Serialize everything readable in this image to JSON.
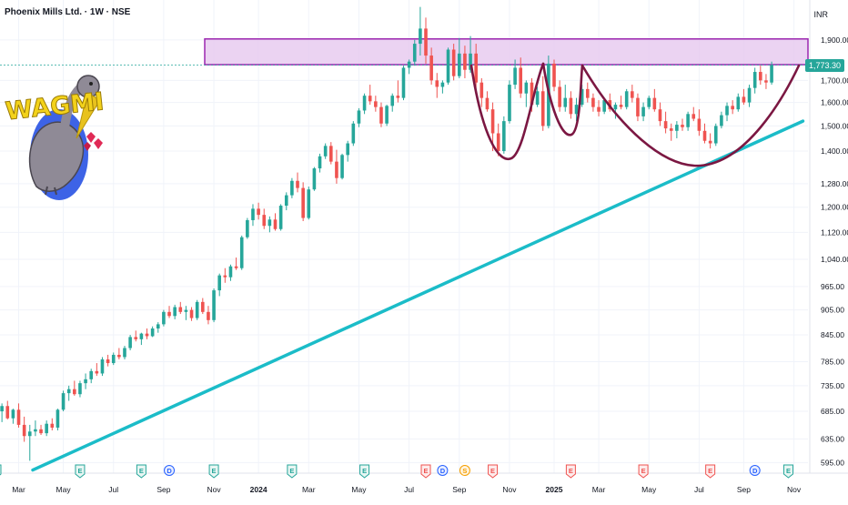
{
  "header": {
    "title": "Phoenix Mills Ltd. · 1W · NSE",
    "currency": "INR"
  },
  "logo": {
    "text": "WAGMI"
  },
  "chart_data": {
    "type": "candlestick",
    "scale": "log",
    "ylim": [
      578,
      2120
    ],
    "y_ticks": [
      "1,900.00",
      "1,700.00",
      "1,600.00",
      "1,500.00",
      "1,400.00",
      "1,280.00",
      "1,200.00",
      "1,120.00",
      "1,040.00",
      "965.00",
      "905.00",
      "845.00",
      "785.00",
      "735.00",
      "685.00",
      "635.00",
      "595.00"
    ],
    "x_ticks": [
      "Mar",
      "May",
      "Jul",
      "Sep",
      "Nov",
      "2024",
      "Mar",
      "May",
      "Jul",
      "Sep",
      "Nov",
      "2025",
      "Mar",
      "May",
      "Jul",
      "Sep",
      "Nov"
    ],
    "last_price": "1,773.30",
    "colors": {
      "up": "#26a69a",
      "down": "#ef5350",
      "trendline": "#1bbcc8",
      "pattern": "#7b1742",
      "zone_fill": "#e6c8ef",
      "zone_stroke": "#9c27b0"
    },
    "resistance_zone": [
      1775,
      1905
    ],
    "trendline": [
      {
        "week": 0,
        "price": 583
      },
      {
        "week": 142,
        "price": 1520
      }
    ],
    "events": [
      {
        "week": 0,
        "label": "E",
        "kind": "earnings"
      },
      {
        "week": 15,
        "label": "E",
        "kind": "earnings"
      },
      {
        "week": 26,
        "label": "E",
        "kind": "earnings"
      },
      {
        "week": 31,
        "label": "D",
        "kind": "dividend"
      },
      {
        "week": 39,
        "label": "E",
        "kind": "earnings"
      },
      {
        "week": 53,
        "label": "E",
        "kind": "earnings"
      },
      {
        "week": 66,
        "label": "E",
        "kind": "earnings"
      },
      {
        "week": 77,
        "label": "E",
        "kind": "earnings-miss"
      },
      {
        "week": 80,
        "label": "D",
        "kind": "dividend"
      },
      {
        "week": 84,
        "label": "S",
        "kind": "split"
      },
      {
        "week": 89,
        "label": "E",
        "kind": "earnings-miss"
      },
      {
        "week": 103,
        "label": "E",
        "kind": "earnings-miss"
      },
      {
        "week": 116,
        "label": "E",
        "kind": "earnings-miss"
      },
      {
        "week": 128,
        "label": "E",
        "kind": "earnings-miss"
      },
      {
        "week": 136,
        "label": "D",
        "kind": "dividend"
      },
      {
        "week": 142,
        "label": "E",
        "kind": "earnings"
      }
    ],
    "candles": [
      {
        "o": 690,
        "h": 705,
        "l": 660,
        "c": 685
      },
      {
        "o": 685,
        "h": 700,
        "l": 665,
        "c": 695
      },
      {
        "o": 695,
        "h": 705,
        "l": 670,
        "c": 672
      },
      {
        "o": 672,
        "h": 690,
        "l": 662,
        "c": 688
      },
      {
        "o": 688,
        "h": 700,
        "l": 655,
        "c": 660
      },
      {
        "o": 660,
        "h": 675,
        "l": 630,
        "c": 640
      },
      {
        "o": 640,
        "h": 660,
        "l": 598,
        "c": 648
      },
      {
        "o": 648,
        "h": 668,
        "l": 640,
        "c": 652
      },
      {
        "o": 652,
        "h": 660,
        "l": 642,
        "c": 645
      },
      {
        "o": 645,
        "h": 668,
        "l": 640,
        "c": 662
      },
      {
        "o": 662,
        "h": 672,
        "l": 650,
        "c": 655
      },
      {
        "o": 655,
        "h": 690,
        "l": 650,
        "c": 688
      },
      {
        "o": 688,
        "h": 725,
        "l": 685,
        "c": 720
      },
      {
        "o": 720,
        "h": 735,
        "l": 705,
        "c": 728
      },
      {
        "o": 728,
        "h": 745,
        "l": 715,
        "c": 718
      },
      {
        "o": 718,
        "h": 745,
        "l": 712,
        "c": 740
      },
      {
        "o": 740,
        "h": 760,
        "l": 728,
        "c": 748
      },
      {
        "o": 748,
        "h": 770,
        "l": 740,
        "c": 765
      },
      {
        "o": 765,
        "h": 782,
        "l": 755,
        "c": 760
      },
      {
        "o": 760,
        "h": 795,
        "l": 755,
        "c": 790
      },
      {
        "o": 790,
        "h": 800,
        "l": 775,
        "c": 782
      },
      {
        "o": 782,
        "h": 805,
        "l": 778,
        "c": 800
      },
      {
        "o": 800,
        "h": 815,
        "l": 790,
        "c": 795
      },
      {
        "o": 795,
        "h": 820,
        "l": 790,
        "c": 815
      },
      {
        "o": 815,
        "h": 845,
        "l": 810,
        "c": 840
      },
      {
        "o": 840,
        "h": 855,
        "l": 830,
        "c": 835
      },
      {
        "o": 835,
        "h": 850,
        "l": 822,
        "c": 848
      },
      {
        "o": 848,
        "h": 860,
        "l": 835,
        "c": 842
      },
      {
        "o": 842,
        "h": 865,
        "l": 840,
        "c": 860
      },
      {
        "o": 860,
        "h": 875,
        "l": 850,
        "c": 870
      },
      {
        "o": 870,
        "h": 905,
        "l": 865,
        "c": 900
      },
      {
        "o": 900,
        "h": 915,
        "l": 885,
        "c": 890
      },
      {
        "o": 890,
        "h": 918,
        "l": 882,
        "c": 912
      },
      {
        "o": 912,
        "h": 925,
        "l": 895,
        "c": 900
      },
      {
        "o": 900,
        "h": 915,
        "l": 880,
        "c": 905
      },
      {
        "o": 905,
        "h": 912,
        "l": 878,
        "c": 885
      },
      {
        "o": 885,
        "h": 930,
        "l": 880,
        "c": 925
      },
      {
        "o": 925,
        "h": 935,
        "l": 895,
        "c": 900
      },
      {
        "o": 900,
        "h": 915,
        "l": 870,
        "c": 880
      },
      {
        "o": 880,
        "h": 960,
        "l": 875,
        "c": 955
      },
      {
        "o": 955,
        "h": 1000,
        "l": 940,
        "c": 995
      },
      {
        "o": 995,
        "h": 1015,
        "l": 975,
        "c": 990
      },
      {
        "o": 990,
        "h": 1025,
        "l": 980,
        "c": 1020
      },
      {
        "o": 1020,
        "h": 1045,
        "l": 1010,
        "c": 1015
      },
      {
        "o": 1015,
        "h": 1110,
        "l": 1010,
        "c": 1105
      },
      {
        "o": 1105,
        "h": 1165,
        "l": 1100,
        "c": 1158
      },
      {
        "o": 1158,
        "h": 1210,
        "l": 1140,
        "c": 1195
      },
      {
        "o": 1195,
        "h": 1215,
        "l": 1160,
        "c": 1175
      },
      {
        "o": 1175,
        "h": 1195,
        "l": 1130,
        "c": 1140
      },
      {
        "o": 1140,
        "h": 1170,
        "l": 1120,
        "c": 1160
      },
      {
        "o": 1160,
        "h": 1180,
        "l": 1125,
        "c": 1130
      },
      {
        "o": 1130,
        "h": 1210,
        "l": 1125,
        "c": 1205
      },
      {
        "o": 1205,
        "h": 1250,
        "l": 1190,
        "c": 1240
      },
      {
        "o": 1240,
        "h": 1300,
        "l": 1230,
        "c": 1290
      },
      {
        "o": 1290,
        "h": 1320,
        "l": 1250,
        "c": 1265
      },
      {
        "o": 1265,
        "h": 1285,
        "l": 1155,
        "c": 1165
      },
      {
        "o": 1165,
        "h": 1270,
        "l": 1160,
        "c": 1260
      },
      {
        "o": 1260,
        "h": 1340,
        "l": 1255,
        "c": 1335
      },
      {
        "o": 1335,
        "h": 1390,
        "l": 1320,
        "c": 1380
      },
      {
        "o": 1380,
        "h": 1430,
        "l": 1370,
        "c": 1420
      },
      {
        "o": 1420,
        "h": 1435,
        "l": 1350,
        "c": 1360
      },
      {
        "o": 1360,
        "h": 1405,
        "l": 1280,
        "c": 1300
      },
      {
        "o": 1300,
        "h": 1390,
        "l": 1295,
        "c": 1385
      },
      {
        "o": 1385,
        "h": 1440,
        "l": 1360,
        "c": 1430
      },
      {
        "o": 1430,
        "h": 1520,
        "l": 1420,
        "c": 1510
      },
      {
        "o": 1510,
        "h": 1575,
        "l": 1495,
        "c": 1565
      },
      {
        "o": 1565,
        "h": 1640,
        "l": 1550,
        "c": 1630
      },
      {
        "o": 1630,
        "h": 1680,
        "l": 1590,
        "c": 1605
      },
      {
        "o": 1605,
        "h": 1630,
        "l": 1560,
        "c": 1580
      },
      {
        "o": 1580,
        "h": 1600,
        "l": 1495,
        "c": 1510
      },
      {
        "o": 1510,
        "h": 1590,
        "l": 1500,
        "c": 1585
      },
      {
        "o": 1585,
        "h": 1640,
        "l": 1560,
        "c": 1630
      },
      {
        "o": 1630,
        "h": 1700,
        "l": 1600,
        "c": 1620
      },
      {
        "o": 1620,
        "h": 1770,
        "l": 1610,
        "c": 1760
      },
      {
        "o": 1760,
        "h": 1800,
        "l": 1730,
        "c": 1790
      },
      {
        "o": 1790,
        "h": 1900,
        "l": 1770,
        "c": 1880
      },
      {
        "o": 1880,
        "h": 2080,
        "l": 1820,
        "c": 1960
      },
      {
        "o": 1960,
        "h": 2020,
        "l": 1780,
        "c": 1820
      },
      {
        "o": 1820,
        "h": 1860,
        "l": 1680,
        "c": 1700
      },
      {
        "o": 1700,
        "h": 1735,
        "l": 1620,
        "c": 1670
      },
      {
        "o": 1670,
        "h": 1700,
        "l": 1640,
        "c": 1690
      },
      {
        "o": 1690,
        "h": 1860,
        "l": 1680,
        "c": 1850
      },
      {
        "o": 1850,
        "h": 1880,
        "l": 1700,
        "c": 1720
      },
      {
        "o": 1720,
        "h": 1910,
        "l": 1710,
        "c": 1830
      },
      {
        "o": 1830,
        "h": 1870,
        "l": 1710,
        "c": 1750
      },
      {
        "o": 1750,
        "h": 1920,
        "l": 1735,
        "c": 1830
      },
      {
        "o": 1830,
        "h": 1880,
        "l": 1660,
        "c": 1690
      },
      {
        "o": 1690,
        "h": 1710,
        "l": 1580,
        "c": 1620
      },
      {
        "o": 1620,
        "h": 1650,
        "l": 1560,
        "c": 1570
      },
      {
        "o": 1570,
        "h": 1600,
        "l": 1400,
        "c": 1470
      },
      {
        "o": 1470,
        "h": 1510,
        "l": 1380,
        "c": 1400
      },
      {
        "o": 1400,
        "h": 1540,
        "l": 1390,
        "c": 1520
      },
      {
        "o": 1520,
        "h": 1700,
        "l": 1510,
        "c": 1680
      },
      {
        "o": 1680,
        "h": 1800,
        "l": 1660,
        "c": 1760
      },
      {
        "o": 1760,
        "h": 1810,
        "l": 1620,
        "c": 1640
      },
      {
        "o": 1640,
        "h": 1700,
        "l": 1580,
        "c": 1690
      },
      {
        "o": 1690,
        "h": 1710,
        "l": 1560,
        "c": 1590
      },
      {
        "o": 1590,
        "h": 1670,
        "l": 1580,
        "c": 1650
      },
      {
        "o": 1650,
        "h": 1720,
        "l": 1480,
        "c": 1500
      },
      {
        "o": 1500,
        "h": 1820,
        "l": 1490,
        "c": 1780
      },
      {
        "o": 1780,
        "h": 1800,
        "l": 1650,
        "c": 1670
      },
      {
        "o": 1670,
        "h": 1700,
        "l": 1560,
        "c": 1580
      },
      {
        "o": 1580,
        "h": 1680,
        "l": 1560,
        "c": 1620
      },
      {
        "o": 1620,
        "h": 1650,
        "l": 1530,
        "c": 1550
      },
      {
        "o": 1550,
        "h": 1620,
        "l": 1520,
        "c": 1590
      },
      {
        "o": 1590,
        "h": 1680,
        "l": 1580,
        "c": 1660
      },
      {
        "o": 1660,
        "h": 1690,
        "l": 1600,
        "c": 1620
      },
      {
        "o": 1620,
        "h": 1640,
        "l": 1560,
        "c": 1580
      },
      {
        "o": 1580,
        "h": 1610,
        "l": 1540,
        "c": 1560
      },
      {
        "o": 1560,
        "h": 1620,
        "l": 1550,
        "c": 1610
      },
      {
        "o": 1610,
        "h": 1640,
        "l": 1560,
        "c": 1570
      },
      {
        "o": 1570,
        "h": 1600,
        "l": 1530,
        "c": 1590
      },
      {
        "o": 1590,
        "h": 1630,
        "l": 1570,
        "c": 1580
      },
      {
        "o": 1580,
        "h": 1660,
        "l": 1570,
        "c": 1650
      },
      {
        "o": 1650,
        "h": 1680,
        "l": 1600,
        "c": 1620
      },
      {
        "o": 1620,
        "h": 1640,
        "l": 1520,
        "c": 1540
      },
      {
        "o": 1540,
        "h": 1600,
        "l": 1520,
        "c": 1580
      },
      {
        "o": 1580,
        "h": 1630,
        "l": 1570,
        "c": 1620
      },
      {
        "o": 1620,
        "h": 1660,
        "l": 1560,
        "c": 1570
      },
      {
        "o": 1570,
        "h": 1600,
        "l": 1500,
        "c": 1520
      },
      {
        "o": 1520,
        "h": 1560,
        "l": 1470,
        "c": 1490
      },
      {
        "o": 1490,
        "h": 1510,
        "l": 1440,
        "c": 1480
      },
      {
        "o": 1480,
        "h": 1520,
        "l": 1450,
        "c": 1505
      },
      {
        "o": 1505,
        "h": 1530,
        "l": 1480,
        "c": 1495
      },
      {
        "o": 1495,
        "h": 1560,
        "l": 1480,
        "c": 1550
      },
      {
        "o": 1550,
        "h": 1580,
        "l": 1520,
        "c": 1530
      },
      {
        "o": 1530,
        "h": 1570,
        "l": 1460,
        "c": 1480
      },
      {
        "o": 1480,
        "h": 1510,
        "l": 1430,
        "c": 1440
      },
      {
        "o": 1440,
        "h": 1470,
        "l": 1410,
        "c": 1430
      },
      {
        "o": 1430,
        "h": 1510,
        "l": 1420,
        "c": 1500
      },
      {
        "o": 1500,
        "h": 1560,
        "l": 1490,
        "c": 1545
      },
      {
        "o": 1545,
        "h": 1600,
        "l": 1520,
        "c": 1585
      },
      {
        "o": 1585,
        "h": 1610,
        "l": 1550,
        "c": 1570
      },
      {
        "o": 1570,
        "h": 1640,
        "l": 1560,
        "c": 1625
      },
      {
        "o": 1625,
        "h": 1660,
        "l": 1590,
        "c": 1600
      },
      {
        "o": 1600,
        "h": 1680,
        "l": 1580,
        "c": 1665
      },
      {
        "o": 1665,
        "h": 1760,
        "l": 1640,
        "c": 1740
      },
      {
        "o": 1740,
        "h": 1770,
        "l": 1680,
        "c": 1700
      },
      {
        "o": 1700,
        "h": 1730,
        "l": 1660,
        "c": 1690
      },
      {
        "o": 1690,
        "h": 1790,
        "l": 1680,
        "c": 1773
      }
    ]
  }
}
